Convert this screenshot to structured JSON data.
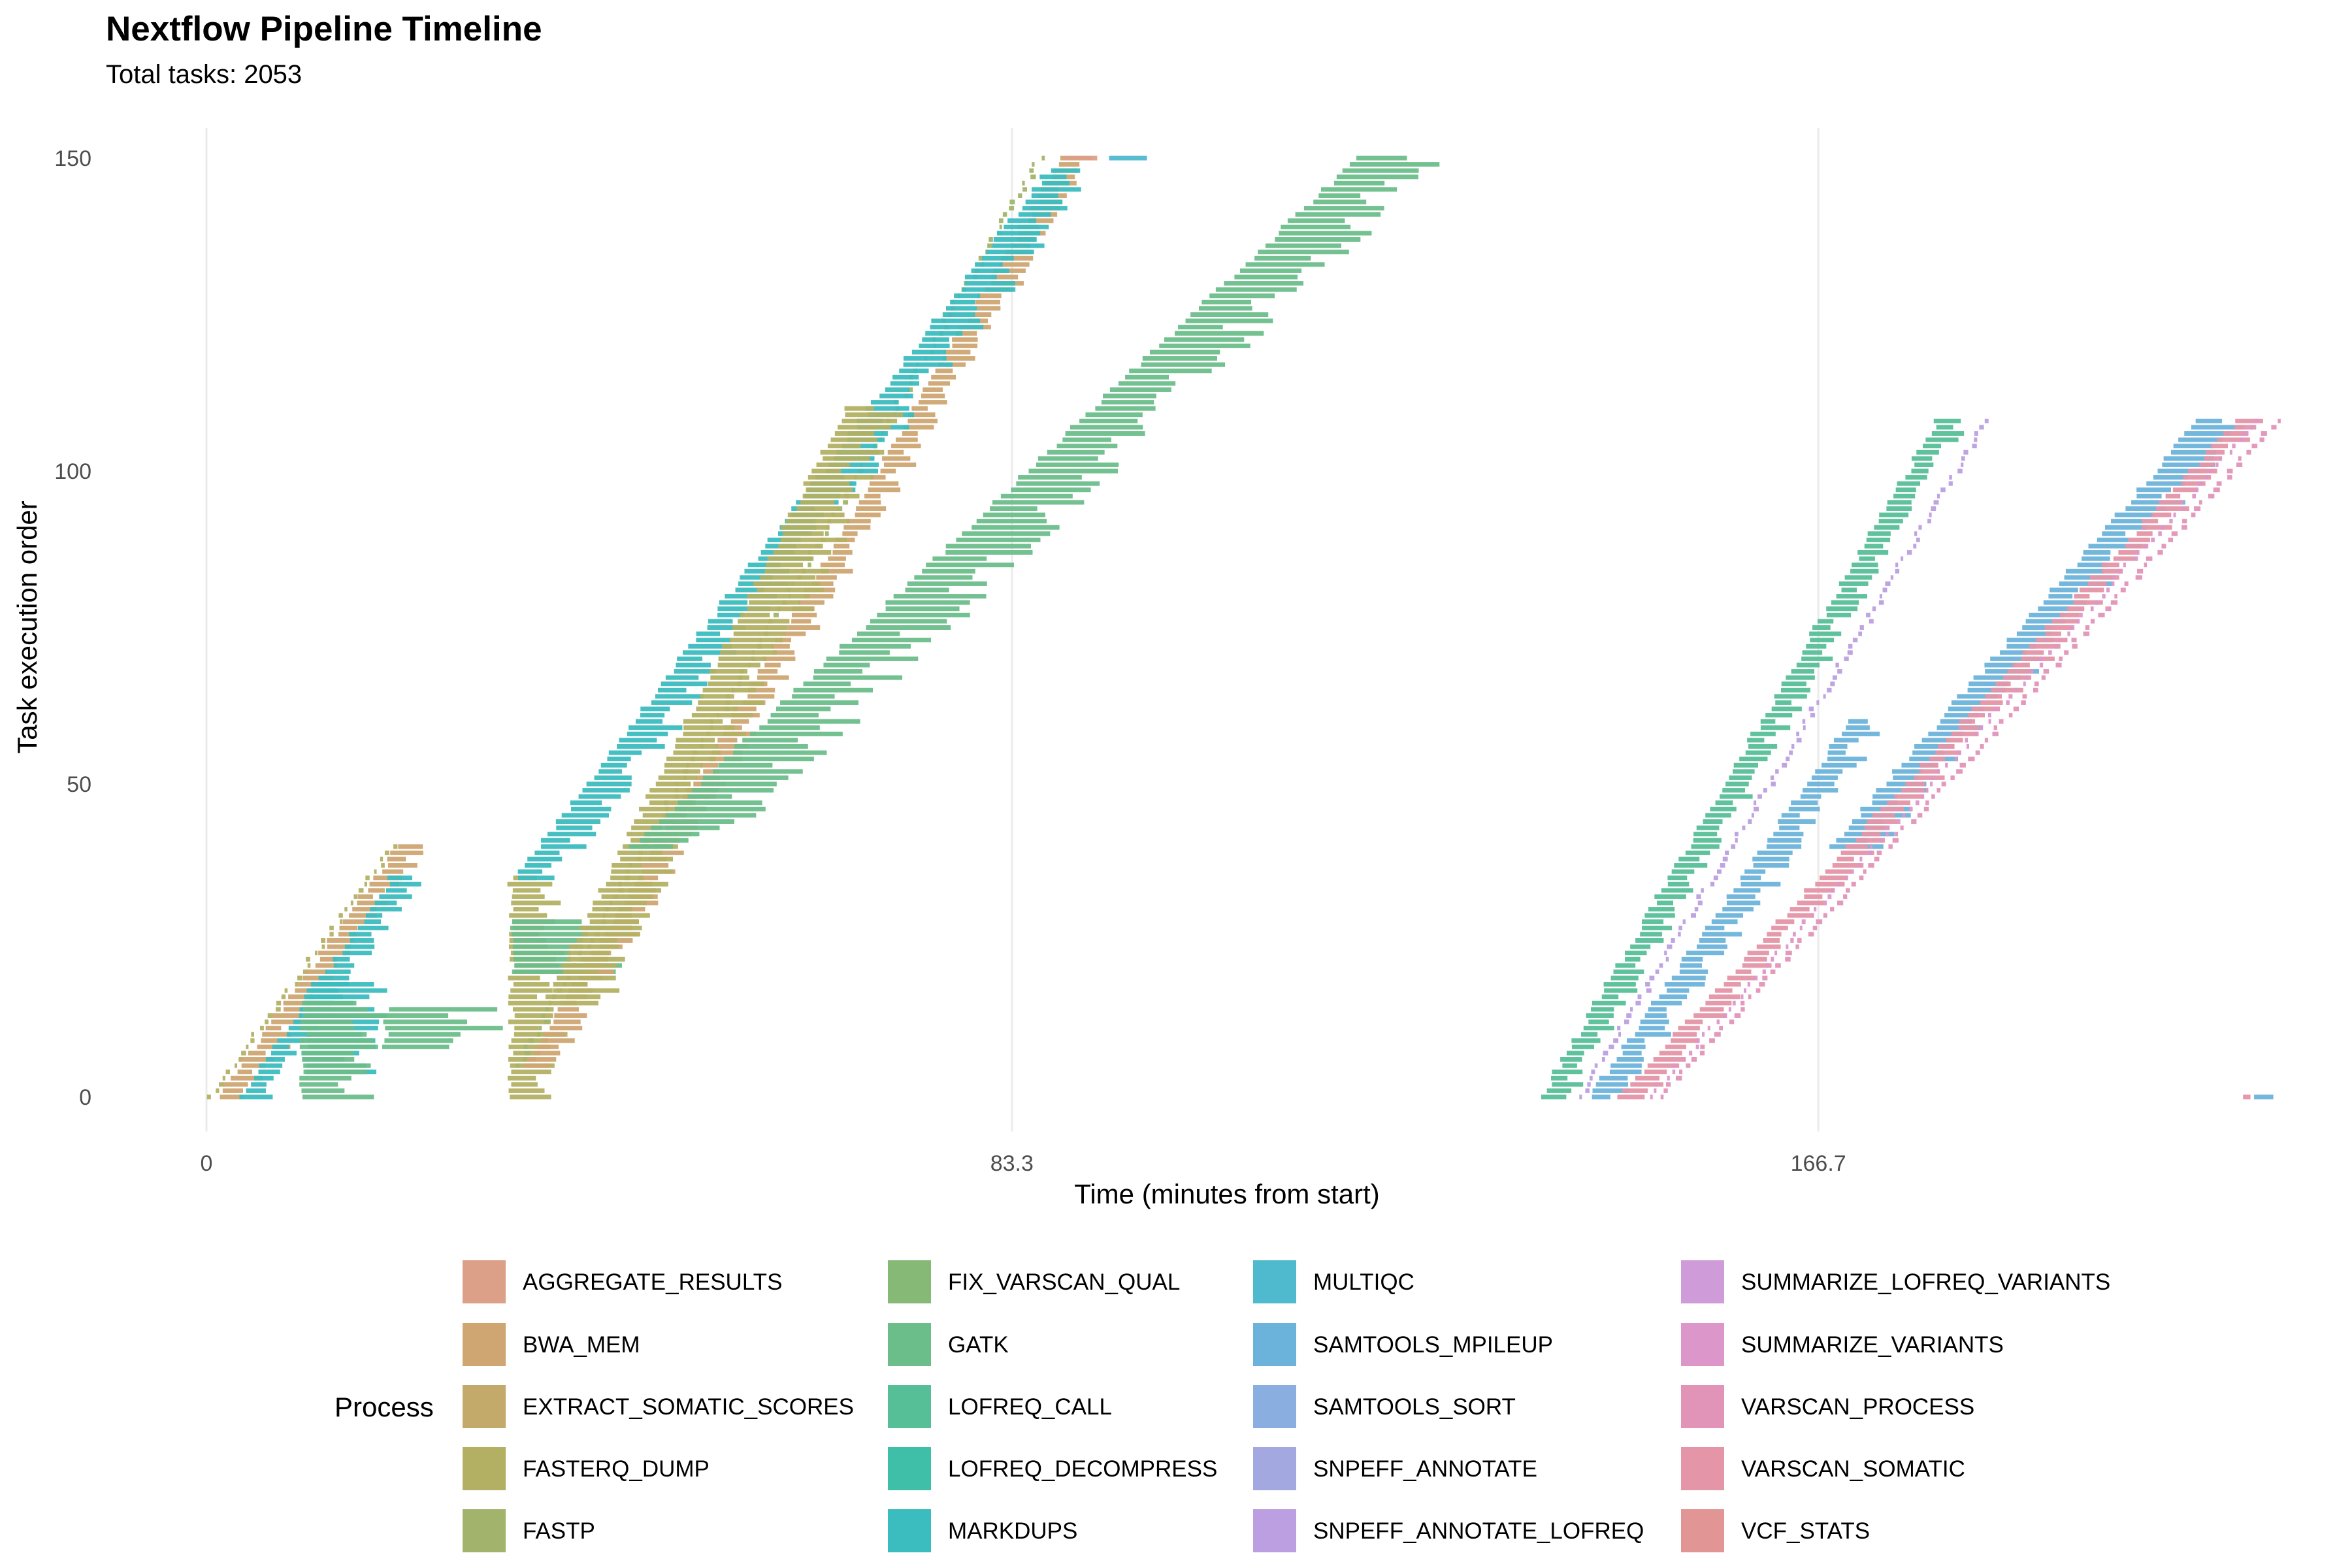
{
  "chart_data": {
    "type": "gantt",
    "title": "Nextflow Pipeline Timeline",
    "subtitle": "Total tasks: 2053",
    "xlabel": "Time (minutes from start)",
    "ylabel": "Task execution order",
    "xlim": [
      0,
      213
    ],
    "ylim": [
      0,
      152
    ],
    "x_ticks": [
      "0",
      "83.3",
      "166.7"
    ],
    "x_tick_values": [
      0,
      83.3,
      166.7
    ],
    "y_ticks": [
      "0",
      "50",
      "100",
      "150"
    ],
    "y_tick_values": [
      0,
      50,
      100,
      150
    ],
    "grid": "vertical major lines",
    "legend": {
      "title": "Process",
      "placement": "bottom",
      "items": [
        {
          "label": "AGGREGATE_RESULTS",
          "color": "#dc9f87"
        },
        {
          "label": "BWA_MEM",
          "color": "#cfa572"
        },
        {
          "label": "EXTRACT_SOMATIC_SCORES",
          "color": "#c3a96a"
        },
        {
          "label": "FASTERQ_DUMP",
          "color": "#b3b063"
        },
        {
          "label": "FASTP",
          "color": "#a2b46b"
        },
        {
          "label": "FIX_VARSCAN_QUAL",
          "color": "#86b975"
        },
        {
          "label": "GATK",
          "color": "#6bbd8a"
        },
        {
          "label": "LOFREQ_CALL",
          "color": "#56bf97"
        },
        {
          "label": "LOFREQ_DECOMPRESS",
          "color": "#40bfa8"
        },
        {
          "label": "MARKDUPS",
          "color": "#3bbcbf"
        },
        {
          "label": "MULTIQC",
          "color": "#4fb9cd"
        },
        {
          "label": "SAMTOOLS_MPILEUP",
          "color": "#6bb3da"
        },
        {
          "label": "SAMTOOLS_SORT",
          "color": "#8aaedf"
        },
        {
          "label": "SNPEFF_ANNOTATE",
          "color": "#a3a8e1"
        },
        {
          "label": "SNPEFF_ANNOTATE_LOFREQ",
          "color": "#bc9fe0"
        },
        {
          "label": "SUMMARIZE_LOFREQ_VARIANTS",
          "color": "#cf9bd8"
        },
        {
          "label": "SUMMARIZE_VARIANTS",
          "color": "#dc96ca"
        },
        {
          "label": "VARSCAN_PROCESS",
          "color": "#e193b8"
        },
        {
          "label": "VARSCAN_SOMATIC",
          "color": "#e495a8"
        },
        {
          "label": "VCF_STATS",
          "color": "#e29595"
        }
      ]
    },
    "task_waves": [
      {
        "process": "FASTERQ_DUMP",
        "order": [
          0,
          40
        ],
        "start_min": [
          0.3,
          19.1
        ],
        "duration_min": 0.4
      },
      {
        "process": "BWA_MEM",
        "order": [
          0,
          40
        ],
        "start_min": [
          1.1,
          19.8
        ],
        "duration_min": 2.5
      },
      {
        "process": "MARKDUPS",
        "order": [
          0,
          35
        ],
        "start_min": [
          3.5,
          19.1
        ],
        "duration_min": 2.5
      },
      {
        "process": "MARKDUPS",
        "order": [
          4,
          18
        ],
        "start_min": [
          10,
          10.5
        ],
        "duration_min": 6
      },
      {
        "process": "GATK",
        "order": [
          0,
          15
        ],
        "start_min": [
          10,
          10
        ],
        "duration_min": 6
      },
      {
        "process": "GATK",
        "order": [
          8,
          14
        ],
        "start_min": [
          18.5,
          18.5
        ],
        "duration_min": 10
      },
      {
        "process": "FASTERQ_DUMP",
        "order": [
          0,
          35
        ],
        "start_min": [
          31.5,
          31.5
        ],
        "duration_min": 4
      },
      {
        "process": "GATK",
        "order": [
          20,
          28
        ],
        "start_min": [
          31.5,
          31.5
        ],
        "duration_min": 9
      },
      {
        "process": "FASTP",
        "order": [
          5,
          150
        ],
        "start_min": [
          32,
          86
        ],
        "duration_min": 0.4
      },
      {
        "process": "BWA_MEM",
        "order": [
          5,
          150
        ],
        "start_min": [
          33,
          88.5
        ],
        "duration_min": 2.5
      },
      {
        "process": "MARKDUPS",
        "order": [
          35,
          148
        ],
        "start_min": [
          32,
          87
        ],
        "duration_min": 4
      },
      {
        "process": "FASTERQ_DUMP",
        "order": [
          15,
          110
        ],
        "start_min": [
          35,
          66
        ],
        "duration_min": 5
      },
      {
        "process": "GATK",
        "order": [
          40,
          150
        ],
        "start_min": [
          44,
          119
        ],
        "duration_min": 7
      },
      {
        "process": "AGGREGATE_RESULTS",
        "order": [
          150,
          150
        ],
        "start_min": [
          88.5,
          88.5
        ],
        "duration_min": 4.5
      },
      {
        "process": "MULTIQC",
        "order": [
          150,
          150
        ],
        "start_min": [
          93.5,
          93.5
        ],
        "duration_min": 3
      },
      {
        "process": "LOFREQ_CALL",
        "order": [
          0,
          108
        ],
        "start_min": [
          138,
          179
        ],
        "duration_min": 2.5
      },
      {
        "process": "SNPEFF_ANNOTATE_LOFREQ",
        "order": [
          0,
          108
        ],
        "start_min": [
          142,
          184
        ],
        "duration_min": 0.4
      },
      {
        "process": "SAMTOOLS_MPILEUP",
        "order": [
          0,
          60
        ],
        "start_min": [
          143,
          170
        ],
        "duration_min": 3
      },
      {
        "process": "SAMTOOLS_MPILEUP",
        "order": [
          40,
          108
        ],
        "start_min": [
          168,
          206
        ],
        "duration_min": 4
      },
      {
        "process": "VARSCAN_SOMATIC",
        "order": [
          0,
          108
        ],
        "start_min": [
          146,
          210
        ],
        "duration_min": 2.5
      },
      {
        "process": "VARSCAN_PROCESS",
        "order": [
          0,
          108
        ],
        "start_min": [
          150,
          214
        ],
        "duration_min": 0.5
      },
      {
        "process": "SUMMARIZE_VARIANTS",
        "order": [
          0,
          108
        ],
        "start_min": [
          149,
          212
        ],
        "duration_min": 0.3
      },
      {
        "process": "VARSCAN_SOMATIC",
        "order": [
          0,
          0
        ],
        "start_min": [
          210.8,
          210.8
        ],
        "duration_min": 1
      },
      {
        "process": "SAMTOOLS_MPILEUP",
        "order": [
          0,
          0
        ],
        "start_min": [
          211.8,
          211.8
        ],
        "duration_min": 1.5
      }
    ]
  }
}
